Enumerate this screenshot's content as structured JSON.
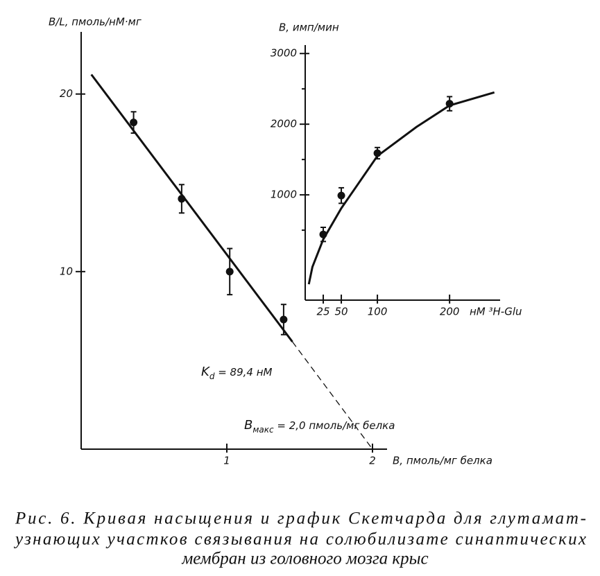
{
  "chart_data": [
    {
      "type": "scatter",
      "y_label": "B/L, пмоль/нМ·мг",
      "x_label": "B, пмоль/мг белка",
      "xlim": [
        0,
        2.1
      ],
      "ylim": [
        0,
        23.5
      ],
      "xticks": [
        1,
        2
      ],
      "yticks": [
        10,
        20
      ],
      "color": "#111111",
      "series": [
        {
          "kind": "points",
          "x": [
            0.36,
            0.69,
            1.02,
            1.39
          ],
          "values": [
            18.4,
            14.1,
            10.0,
            7.3
          ],
          "errors": [
            0.6,
            0.8,
            1.3,
            0.85
          ]
        },
        {
          "kind": "line",
          "x": [
            0.07,
            1.45
          ],
          "values": [
            21.1,
            6.05
          ]
        },
        {
          "kind": "line",
          "dash": true,
          "x": [
            1.45,
            2.0
          ],
          "values": [
            6.05,
            0
          ]
        }
      ],
      "annotations": [
        {
          "parts": [
            "K",
            "d",
            " = 89,4 нМ"
          ]
        },
        {
          "parts": [
            "B",
            "макс",
            " = 2,0 пмоль/мг белка"
          ]
        }
      ]
    },
    {
      "type": "scatter",
      "y_label": "B, имп/мин",
      "x_label": "нМ ³H-Glu",
      "xlim": [
        0,
        270
      ],
      "ylim": [
        -490,
        3120
      ],
      "xticks": [
        25,
        50,
        100,
        200
      ],
      "yticks": [
        1000,
        2000,
        3000
      ],
      "minor_yticks": [
        500,
        1500,
        2500
      ],
      "color": "#111111",
      "series": [
        {
          "kind": "points",
          "x": [
            25,
            50,
            100,
            200
          ],
          "values": [
            440,
            990,
            1590,
            2290
          ],
          "errors": [
            100,
            110,
            80,
            100
          ]
        },
        {
          "kind": "line",
          "x": [
            5,
            10,
            25,
            50,
            100,
            154,
            200,
            262
          ],
          "values": [
            -265,
            -20,
            370,
            810,
            1550,
            1960,
            2265,
            2450
          ]
        }
      ]
    }
  ],
  "caption": [
    "Рис.  6. Кривая насыщения и график Скетчарда для глутамат-",
    "узнающих участков связывания на солюбилизате синаптических",
    "мембран из головного мозга крыс"
  ]
}
